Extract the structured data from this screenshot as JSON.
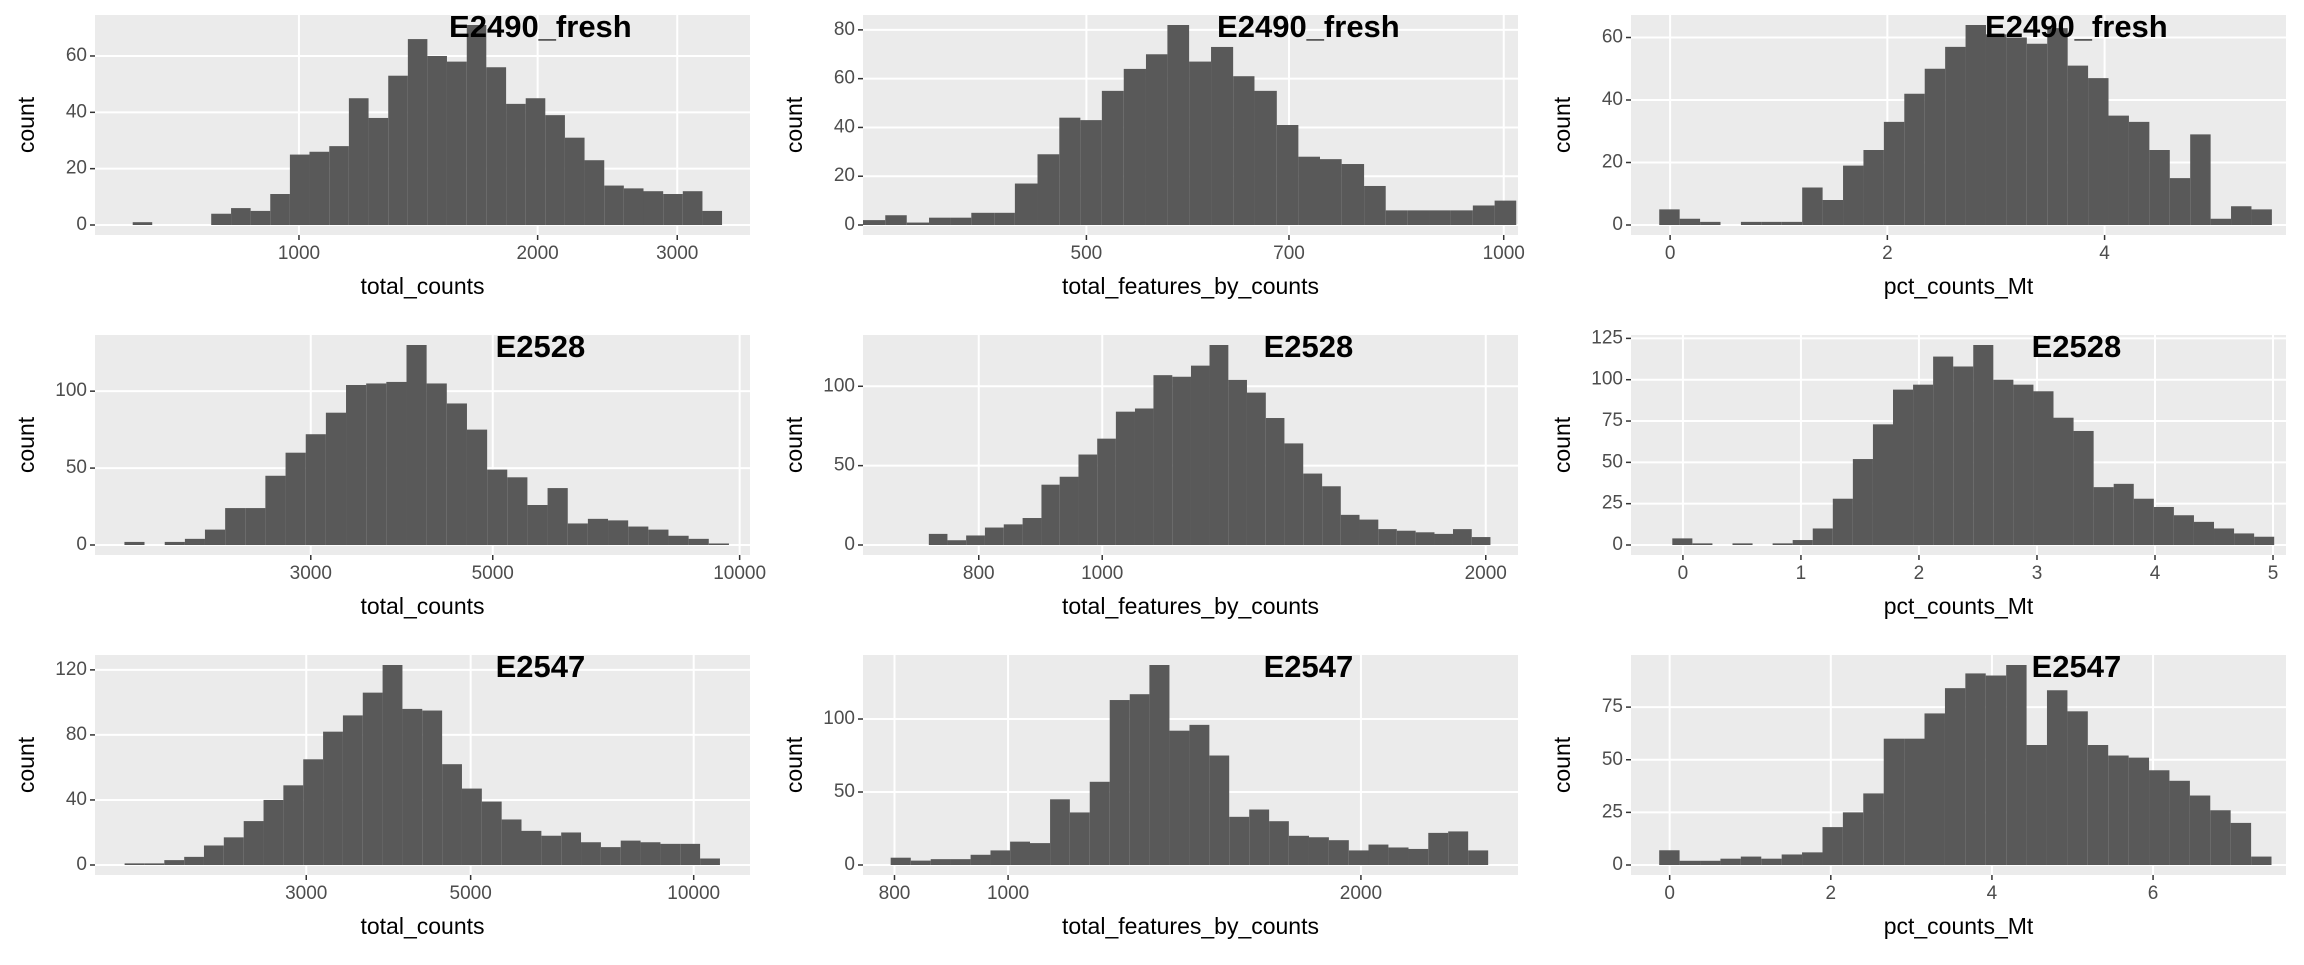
{
  "chart_data": [
    {
      "type": "histogram",
      "title": "E2490_fresh",
      "xlabel": "total_counts",
      "ylabel": "count",
      "log_x": true,
      "grid": true,
      "color": "#595959",
      "bins": [
        617,
        653,
        692,
        732,
        775,
        821,
        869,
        920,
        974,
        1031,
        1092,
        1156,
        1224,
        1296,
        1372,
        1452,
        1537,
        1628,
        1723,
        1825,
        1932,
        2045,
        2165,
        2292,
        2427,
        2569,
        2720,
        2880,
        3049,
        3228,
        3417
      ],
      "counts": [
        1,
        0,
        0,
        0,
        4,
        6,
        5,
        11,
        25,
        26,
        28,
        45,
        38,
        53,
        66,
        60,
        58,
        71,
        56,
        43,
        45,
        39,
        31,
        23,
        14,
        13,
        12,
        11,
        12,
        5
      ],
      "xlim": [
        553,
        3706
      ],
      "ylim": [
        -3.55,
        74.55
      ],
      "xticks": [
        1000,
        2000,
        3000
      ],
      "yticks": [
        0,
        20,
        40,
        60
      ]
    },
    {
      "type": "histogram",
      "title": "E2490_fresh",
      "xlabel": "total_features_by_counts",
      "ylabel": "count",
      "log_x": true,
      "grid": true,
      "color": "#595959",
      "bins": [
        345,
        358,
        371,
        385,
        399,
        413,
        429,
        444,
        461,
        478,
        495,
        513,
        532,
        552,
        572,
        593,
        615,
        638,
        661,
        686,
        711,
        737,
        764,
        793,
        822,
        852,
        884,
        916,
        950,
        985,
        1021
      ],
      "counts": [
        2,
        4,
        1,
        3,
        3,
        5,
        5,
        17,
        29,
        44,
        43,
        55,
        64,
        70,
        82,
        67,
        73,
        61,
        55,
        41,
        28,
        27,
        25,
        16,
        6,
        6,
        6,
        6,
        8,
        10
      ],
      "xlim": [
        345,
        1024
      ],
      "ylim": [
        -4.1,
        86.1
      ],
      "xticks": [
        500,
        700,
        1000
      ],
      "yticks": [
        0,
        20,
        40,
        60,
        80
      ]
    },
    {
      "type": "histogram",
      "title": "E2490_fresh",
      "xlabel": "pct_counts_Mt",
      "ylabel": "count",
      "log_x": false,
      "grid": true,
      "color": "#595959",
      "bins": [
        -0.1,
        0.088,
        0.276,
        0.464,
        0.652,
        0.84,
        1.028,
        1.216,
        1.404,
        1.592,
        1.78,
        1.968,
        2.156,
        2.344,
        2.532,
        2.72,
        2.908,
        3.096,
        3.284,
        3.472,
        3.66,
        3.848,
        4.036,
        4.224,
        4.412,
        4.6,
        4.788,
        4.976,
        5.164,
        5.352,
        5.54
      ],
      "counts": [
        5,
        2,
        1,
        0,
        1,
        1,
        1,
        12,
        8,
        19,
        24,
        33,
        42,
        50,
        57,
        64,
        61,
        60,
        58,
        63,
        51,
        47,
        35,
        33,
        24,
        15,
        29,
        2,
        6,
        5
      ],
      "xlim": [
        -0.36,
        5.67
      ],
      "ylim": [
        -3.2,
        67.2
      ],
      "xticks": [
        0,
        2,
        4
      ],
      "yticks": [
        0,
        20,
        40,
        60
      ]
    },
    {
      "type": "histogram",
      "title": "E2528",
      "xlabel": "total_counts",
      "ylabel": "count",
      "log_x": true,
      "grid": true,
      "color": "#595959",
      "bins": [
        1778,
        1881,
        1991,
        2107,
        2229,
        2359,
        2496,
        2641,
        2795,
        2958,
        3130,
        3312,
        3505,
        3709,
        3925,
        4153,
        4395,
        4651,
        4922,
        5208,
        5511,
        5832,
        6172,
        6531,
        6911,
        7313,
        7739,
        8189,
        8666,
        9170,
        9704
      ],
      "counts": [
        2,
        0,
        2,
        4,
        10,
        24,
        24,
        45,
        60,
        72,
        86,
        104,
        105,
        106,
        130,
        105,
        92,
        75,
        49,
        44,
        26,
        37,
        14,
        17,
        16,
        12,
        10,
        6,
        4,
        1
      ],
      "xlim": [
        1637,
        10295
      ],
      "ylim": [
        -6.5,
        136.5
      ],
      "xticks": [
        3000,
        5000,
        10000
      ],
      "yticks": [
        0,
        50,
        100
      ]
    },
    {
      "type": "histogram",
      "title": "E2528",
      "xlabel": "total_features_by_counts",
      "ylabel": "count",
      "log_x": true,
      "grid": true,
      "color": "#595959",
      "bins": [
        731,
        756,
        782,
        809,
        837,
        866,
        896,
        926,
        958,
        991,
        1025,
        1061,
        1097,
        1135,
        1174,
        1214,
        1256,
        1299,
        1344,
        1390,
        1438,
        1488,
        1539,
        1592,
        1647,
        1703,
        1762,
        1823,
        1885,
        1950,
        2017
      ],
      "counts": [
        7,
        3,
        6,
        11,
        13,
        17,
        38,
        43,
        57,
        67,
        84,
        86,
        107,
        106,
        113,
        126,
        104,
        96,
        80,
        64,
        45,
        37,
        19,
        16,
        10,
        9,
        8,
        7,
        10,
        5
      ],
      "xlim": [
        649,
        2120
      ],
      "ylim": [
        -6.3,
        132.3
      ],
      "xticks": [
        800,
        1000,
        2000
      ],
      "yticks": [
        0,
        50,
        100
      ]
    },
    {
      "type": "histogram",
      "title": "E2528",
      "xlabel": "pct_counts_Mt",
      "ylabel": "count",
      "log_x": false,
      "grid": true,
      "color": "#595959",
      "bins": [
        -0.09,
        0.08,
        0.25,
        0.42,
        0.59,
        0.76,
        0.93,
        1.1,
        1.27,
        1.44,
        1.61,
        1.78,
        1.95,
        2.12,
        2.29,
        2.46,
        2.63,
        2.8,
        2.97,
        3.14,
        3.31,
        3.48,
        3.65,
        3.82,
        3.99,
        4.16,
        4.33,
        4.5,
        4.67,
        4.84,
        5.01
      ],
      "counts": [
        4,
        1,
        0,
        1,
        0,
        1,
        3,
        10,
        28,
        52,
        73,
        94,
        97,
        114,
        108,
        121,
        100,
        97,
        93,
        77,
        69,
        35,
        37,
        28,
        23,
        18,
        14,
        10,
        7,
        5
      ],
      "xlim": [
        -0.44,
        5.11
      ],
      "ylim": [
        -6.05,
        127.05
      ],
      "xticks": [
        0,
        1,
        2,
        3,
        4,
        5
      ],
      "yticks": [
        0,
        25,
        50,
        75,
        100,
        125
      ]
    },
    {
      "type": "histogram",
      "title": "E2547",
      "xlabel": "total_counts",
      "ylabel": "count",
      "log_x": true,
      "grid": true,
      "color": "#595959",
      "bins": [
        1706,
        1814,
        1930,
        2053,
        2183,
        2322,
        2470,
        2627,
        2794,
        2972,
        3161,
        3362,
        3576,
        3803,
        4045,
        4302,
        4576,
        4867,
        5177,
        5506,
        5856,
        6229,
        6625,
        7046,
        7495,
        7971,
        8478,
        9018,
        9591,
        10201,
        10850
      ],
      "counts": [
        1,
        1,
        3,
        5,
        12,
        17,
        27,
        40,
        49,
        65,
        82,
        92,
        106,
        123,
        96,
        95,
        62,
        47,
        39,
        28,
        21,
        18,
        20,
        14,
        11,
        15,
        14,
        13,
        13,
        4
      ],
      "xlim": [
        1556,
        11912
      ],
      "ylim": [
        -6.15,
        129.15
      ],
      "xticks": [
        3000,
        5000,
        10000
      ],
      "yticks": [
        0,
        40,
        80,
        120
      ]
    },
    {
      "type": "histogram",
      "title": "E2547",
      "xlabel": "total_features_by_counts",
      "ylabel": "count",
      "log_x": true,
      "grid": true,
      "color": "#595959",
      "bins": [
        794,
        826,
        859,
        893,
        929,
        966,
        1004,
        1044,
        1086,
        1129,
        1174,
        1221,
        1270,
        1320,
        1373,
        1428,
        1485,
        1544,
        1606,
        1670,
        1736,
        1806,
        1878,
        1953,
        2030,
        2111,
        2196,
        2283,
        2374,
        2469,
        2568
      ],
      "counts": [
        5,
        3,
        4,
        4,
        7,
        10,
        16,
        15,
        45,
        36,
        57,
        113,
        117,
        137,
        92,
        96,
        75,
        33,
        38,
        30,
        20,
        19,
        17,
        10,
        14,
        12,
        11,
        22,
        23,
        10
      ],
      "xlim": [
        752,
        2723
      ],
      "ylim": [
        -6.85,
        143.85
      ],
      "xticks": [
        800,
        1000,
        2000
      ],
      "yticks": [
        0,
        50,
        100
      ]
    },
    {
      "type": "histogram",
      "title": "E2547",
      "xlabel": "pct_counts_Mt",
      "ylabel": "count",
      "log_x": false,
      "grid": true,
      "color": "#595959",
      "bins": [
        -0.13,
        0.123,
        0.377,
        0.63,
        0.883,
        1.137,
        1.39,
        1.643,
        1.897,
        2.15,
        2.403,
        2.657,
        2.91,
        3.163,
        3.417,
        3.67,
        3.923,
        4.177,
        4.43,
        4.683,
        4.937,
        5.19,
        5.443,
        5.697,
        5.95,
        6.203,
        6.457,
        6.71,
        6.963,
        7.217,
        7.47
      ],
      "counts": [
        7,
        2,
        2,
        3,
        4,
        3,
        5,
        6,
        18,
        25,
        34,
        60,
        60,
        72,
        84,
        91,
        90,
        95,
        57,
        83,
        73,
        57,
        52,
        51,
        45,
        40,
        33,
        26,
        20,
        4
      ],
      "xlim": [
        -0.48,
        7.65
      ],
      "ylim": [
        -4.75,
        99.75
      ],
      "xticks": [
        0,
        2,
        4,
        6
      ],
      "yticks": [
        0,
        25,
        50,
        75
      ]
    }
  ]
}
